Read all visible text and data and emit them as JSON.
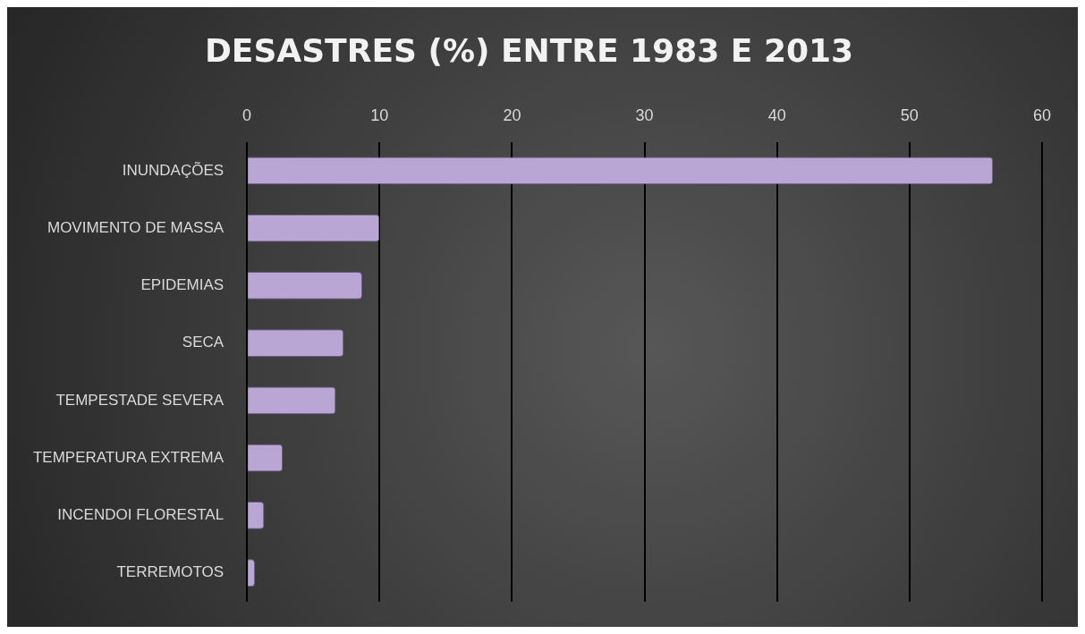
{
  "chart_data": {
    "type": "bar",
    "orientation": "horizontal",
    "title": "DESASTRES (%) ENTRE 1983 E 2013",
    "categories": [
      "INUNDAÇÕES",
      "MOVIMENTO DE MASSA",
      "EPIDEMIAS",
      "SECA",
      "TEMPESTADE SEVERA",
      "TEMPERATURA EXTREMA",
      "INCENDOI FLORESTAL",
      "TERREMOTOS"
    ],
    "values": [
      56.3,
      10,
      8.7,
      7.3,
      6.7,
      2.7,
      1.3,
      0.6
    ],
    "color": "#b9a6d4",
    "xlim": [
      0,
      60
    ],
    "xticks": [
      0,
      10,
      20,
      30,
      40,
      50,
      60
    ],
    "grid": "x",
    "legend": false
  }
}
